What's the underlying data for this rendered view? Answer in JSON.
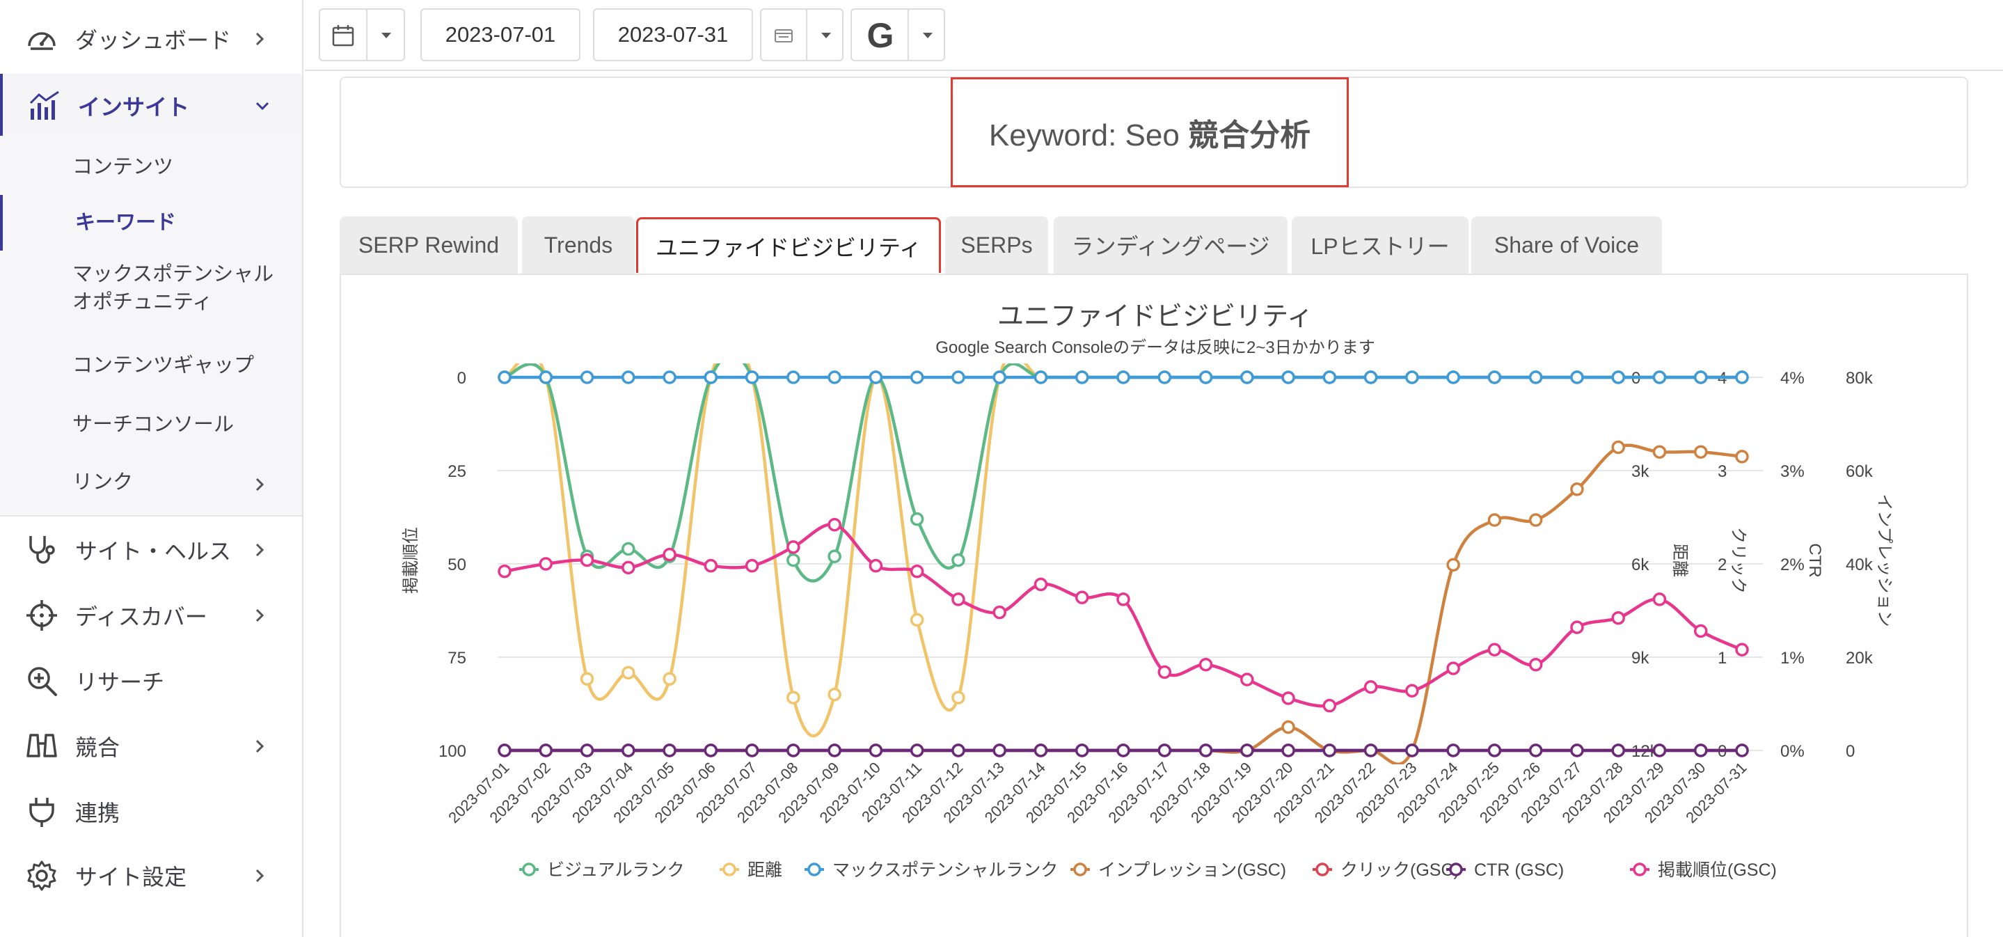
{
  "sidebar": {
    "items": [
      {
        "label": "ダッシュボード"
      },
      {
        "label": "インサイト"
      },
      {
        "label": "サイト・ヘルス"
      },
      {
        "label": "ディスカバー"
      },
      {
        "label": "リサーチ"
      },
      {
        "label": "競合"
      },
      {
        "label": "連携"
      },
      {
        "label": "サイト設定"
      }
    ],
    "submenu": [
      {
        "label": "コンテンツ"
      },
      {
        "label": "キーワード"
      },
      {
        "label": "マックスポテンシャル"
      },
      {
        "label": "オポチュニティ"
      },
      {
        "label": "コンテンツギャップ"
      },
      {
        "label": "サーチコンソール"
      },
      {
        "label": "リンク"
      }
    ]
  },
  "toolbar": {
    "start_date": "2023-07-01",
    "end_date": "2023-07-31",
    "engine_letter": "G"
  },
  "header": {
    "keyword_prefix": "Keyword: Seo ",
    "keyword_suffix": "競合分析"
  },
  "tabs": [
    {
      "label": "SERP Rewind"
    },
    {
      "label": "Trends"
    },
    {
      "label": "ユニファイドビジビリティ"
    },
    {
      "label": "SERPs"
    },
    {
      "label": "ランディングページ"
    },
    {
      "label": "LPヒストリー"
    },
    {
      "label": "Share of Voice"
    }
  ],
  "chart_data": {
    "type": "line",
    "title": "ユニファイドビジビリティ",
    "subtitle": "Google Search Consoleのデータは反映に2~3日かかります",
    "categories": [
      "2023-07-01",
      "2023-07-02",
      "2023-07-03",
      "2023-07-04",
      "2023-07-05",
      "2023-07-06",
      "2023-07-07",
      "2023-07-08",
      "2023-07-09",
      "2023-07-10",
      "2023-07-11",
      "2023-07-12",
      "2023-07-13",
      "2023-07-14",
      "2023-07-15",
      "2023-07-16",
      "2023-07-17",
      "2023-07-18",
      "2023-07-19",
      "2023-07-20",
      "2023-07-21",
      "2023-07-22",
      "2023-07-23",
      "2023-07-24",
      "2023-07-25",
      "2023-07-26",
      "2023-07-27",
      "2023-07-28",
      "2023-07-29",
      "2023-07-30",
      "2023-07-31"
    ],
    "axes": [
      {
        "id": "rank",
        "label": "掲載順位",
        "ticks": [
          "0",
          "25",
          "50",
          "75",
          "100"
        ],
        "range": [
          0,
          100
        ],
        "reversed": true,
        "side": "left"
      },
      {
        "id": "distance",
        "label": "距離",
        "ticks": [
          "0",
          "3k",
          "6k",
          "9k",
          "12k"
        ],
        "range": [
          0,
          12000
        ],
        "reversed": true,
        "side": "right"
      },
      {
        "id": "clicks",
        "label": "クリック",
        "ticks": [
          "4",
          "3",
          "2",
          "1",
          "0"
        ],
        "range": [
          0,
          4
        ],
        "side": "right"
      },
      {
        "id": "ctr",
        "label": "CTR",
        "ticks": [
          "4%",
          "3%",
          "2%",
          "1%",
          "0%"
        ],
        "range": [
          0,
          4
        ],
        "side": "right"
      },
      {
        "id": "impr",
        "label": "インプレッション",
        "ticks": [
          "80k",
          "60k",
          "40k",
          "20k",
          "0"
        ],
        "range": [
          0,
          80000
        ],
        "side": "right"
      }
    ],
    "series": [
      {
        "name": "ビジュアルランク",
        "color": "#5cb885",
        "axis": "rank",
        "values": [
          0,
          0,
          48,
          46,
          48,
          0,
          0,
          49,
          48,
          0,
          38,
          49,
          0,
          0,
          0,
          0,
          0,
          0,
          0,
          0,
          0,
          0,
          0,
          0,
          0,
          0,
          0,
          0,
          0,
          0,
          0
        ]
      },
      {
        "name": "距離",
        "color": "#f2c46a",
        "axis": "distance",
        "values": [
          0,
          0,
          9700,
          9500,
          9700,
          0,
          0,
          10300,
          10200,
          0,
          7800,
          10300,
          0,
          0,
          0,
          0,
          0,
          0,
          0,
          0,
          0,
          0,
          0,
          0,
          0,
          0,
          0,
          0,
          0,
          0,
          0
        ]
      },
      {
        "name": "マックスポテンシャルランク",
        "color": "#3f9ad8",
        "axis": "rank",
        "values": [
          0,
          0,
          0,
          0,
          0,
          0,
          0,
          0,
          0,
          0,
          0,
          0,
          0,
          0,
          0,
          0,
          0,
          0,
          0,
          0,
          0,
          0,
          0,
          0,
          0,
          0,
          0,
          0,
          0,
          0,
          0
        ]
      },
      {
        "name": "インプレッション(GSC)",
        "color": "#cf8240",
        "axis": "impr",
        "values": [
          0,
          0,
          0,
          0,
          0,
          0,
          0,
          0,
          0,
          0,
          0,
          0,
          0,
          0,
          0,
          0,
          0,
          0,
          0,
          5000,
          0,
          0,
          0,
          39800,
          49400,
          49400,
          56000,
          65000,
          64000,
          64000,
          63000
        ]
      },
      {
        "name": "クリック(GSC)",
        "color": "#dd4452",
        "axis": "clicks",
        "values": [
          0,
          0,
          0,
          0,
          0,
          0,
          0,
          0,
          0,
          0,
          0,
          0,
          0,
          0,
          0,
          0,
          0,
          0,
          0,
          0,
          0,
          0,
          0,
          0,
          0,
          0,
          0,
          0,
          0,
          0,
          0
        ]
      },
      {
        "name": "CTR (GSC)",
        "color": "#6a2a7a",
        "axis": "ctr",
        "values": [
          0,
          0,
          0,
          0,
          0,
          0,
          0,
          0,
          0,
          0,
          0,
          0,
          0,
          0,
          0,
          0,
          0,
          0,
          0,
          0,
          0,
          0,
          0,
          0,
          0,
          0,
          0,
          0,
          0,
          0,
          0
        ]
      },
      {
        "name": "掲載順位(GSC)",
        "color": "#e8368f",
        "axis": "rank",
        "values": [
          52,
          50,
          49,
          51,
          47.5,
          50.5,
          50.5,
          45.5,
          39.5,
          50.5,
          52,
          59.5,
          63,
          55.5,
          59,
          59.5,
          79,
          77,
          81,
          86,
          88,
          83,
          84,
          78,
          73,
          77,
          67,
          64.5,
          59.5,
          68,
          73
        ]
      }
    ],
    "legend_position": "bottom"
  }
}
